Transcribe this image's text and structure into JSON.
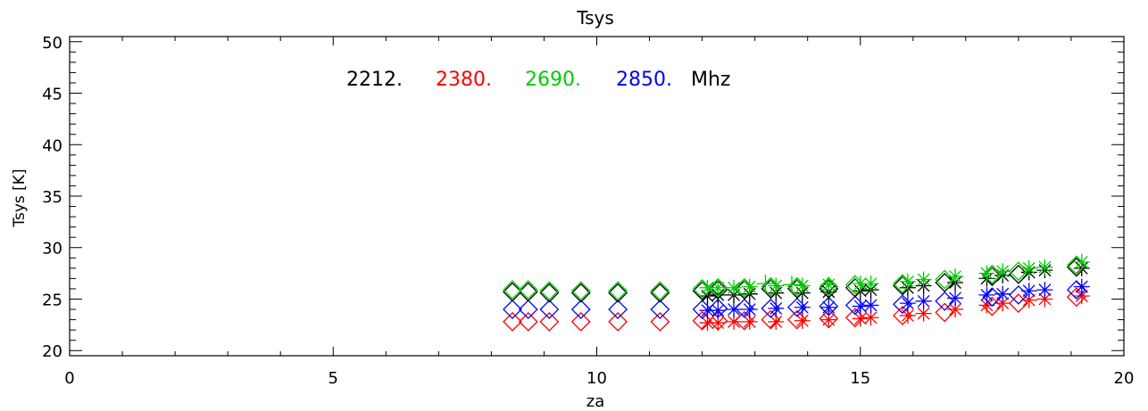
{
  "chart_data": {
    "type": "scatter",
    "title": "Tsys",
    "xlabel": "za",
    "ylabel": "Tsys [K]",
    "xlim": [
      0,
      20
    ],
    "ylim": [
      19.5,
      50.5
    ],
    "x_ticks": [
      "0",
      "5",
      "10",
      "15",
      "20"
    ],
    "y_ticks": [
      "20",
      "25",
      "30",
      "35",
      "40",
      "45",
      "50"
    ],
    "grid": false,
    "legend": {
      "placement": "top-left",
      "entries": [
        {
          "label": "2212.",
          "color": "#000000"
        },
        {
          "label": "2380.",
          "color": "#ff0000"
        },
        {
          "label": "2690.",
          "color": "#00cc00"
        },
        {
          "label": "2850.",
          "color": "#0000ff"
        }
      ],
      "unit": "Mhz"
    },
    "series": [
      {
        "name": "2212.",
        "color": "#000000",
        "diamonds": [
          [
            8.4,
            25.7
          ],
          [
            8.7,
            25.7
          ],
          [
            9.1,
            25.6
          ],
          [
            9.7,
            25.6
          ],
          [
            10.4,
            25.6
          ],
          [
            11.2,
            25.6
          ],
          [
            12.0,
            25.8
          ],
          [
            12.3,
            25.9
          ],
          [
            12.8,
            25.9
          ],
          [
            13.3,
            26.0
          ],
          [
            13.8,
            26.0
          ],
          [
            14.4,
            26.0
          ],
          [
            14.9,
            26.1
          ],
          [
            15.8,
            26.3
          ],
          [
            16.6,
            26.6
          ],
          [
            17.5,
            27.2
          ],
          [
            18.0,
            27.4
          ],
          [
            19.1,
            28.1
          ]
        ],
        "stars": [
          [
            12.1,
            25.3
          ],
          [
            12.3,
            25.4
          ],
          [
            12.6,
            25.4
          ],
          [
            12.9,
            25.5
          ],
          [
            13.4,
            25.6
          ],
          [
            13.9,
            25.6
          ],
          [
            14.4,
            25.7
          ],
          [
            15.0,
            25.8
          ],
          [
            15.2,
            25.9
          ],
          [
            15.9,
            26.1
          ],
          [
            16.2,
            26.3
          ],
          [
            16.8,
            26.6
          ],
          [
            17.4,
            27.0
          ],
          [
            17.7,
            27.3
          ],
          [
            18.2,
            27.6
          ],
          [
            18.5,
            27.8
          ],
          [
            19.2,
            28.0
          ]
        ]
      },
      {
        "name": "2380.",
        "color": "#ff0000",
        "diamonds": [
          [
            8.4,
            22.8
          ],
          [
            8.7,
            22.8
          ],
          [
            9.1,
            22.8
          ],
          [
            9.7,
            22.8
          ],
          [
            10.4,
            22.8
          ],
          [
            11.2,
            22.8
          ],
          [
            12.0,
            22.9
          ],
          [
            12.3,
            22.9
          ],
          [
            12.8,
            22.9
          ],
          [
            13.3,
            23.0
          ],
          [
            13.8,
            23.0
          ],
          [
            14.4,
            23.1
          ],
          [
            14.9,
            23.2
          ],
          [
            15.8,
            23.4
          ],
          [
            16.6,
            23.7
          ],
          [
            17.5,
            24.3
          ],
          [
            18.0,
            24.6
          ],
          [
            19.1,
            25.2
          ]
        ],
        "stars": [
          [
            12.1,
            22.7
          ],
          [
            12.3,
            22.7
          ],
          [
            12.6,
            22.8
          ],
          [
            12.9,
            22.8
          ],
          [
            13.4,
            22.8
          ],
          [
            13.9,
            22.9
          ],
          [
            14.4,
            23.0
          ],
          [
            15.0,
            23.1
          ],
          [
            15.2,
            23.2
          ],
          [
            15.9,
            23.4
          ],
          [
            16.2,
            23.6
          ],
          [
            16.8,
            24.0
          ],
          [
            17.4,
            24.4
          ],
          [
            17.7,
            24.6
          ],
          [
            18.2,
            24.9
          ],
          [
            18.5,
            25.0
          ],
          [
            19.2,
            25.3
          ]
        ]
      },
      {
        "name": "2690.",
        "color": "#00cc00",
        "diamonds": [
          [
            8.4,
            25.9
          ],
          [
            8.7,
            25.9
          ],
          [
            9.1,
            25.8
          ],
          [
            9.7,
            25.8
          ],
          [
            10.4,
            25.8
          ],
          [
            11.2,
            25.8
          ],
          [
            12.0,
            26.0
          ],
          [
            12.3,
            26.1
          ],
          [
            12.8,
            26.1
          ],
          [
            13.3,
            26.2
          ],
          [
            13.8,
            26.2
          ],
          [
            14.4,
            26.2
          ],
          [
            14.9,
            26.4
          ],
          [
            15.8,
            26.5
          ],
          [
            16.6,
            26.9
          ],
          [
            17.5,
            27.4
          ],
          [
            18.0,
            27.7
          ],
          [
            19.1,
            28.3
          ]
        ],
        "stars": [
          [
            12.1,
            26.1
          ],
          [
            12.3,
            26.1
          ],
          [
            12.6,
            26.1
          ],
          [
            12.9,
            26.2
          ],
          [
            13.4,
            26.3
          ],
          [
            13.9,
            26.3
          ],
          [
            14.4,
            26.4
          ],
          [
            15.0,
            26.5
          ],
          [
            15.2,
            26.5
          ],
          [
            15.9,
            26.7
          ],
          [
            16.2,
            26.9
          ],
          [
            16.8,
            27.2
          ],
          [
            17.4,
            27.5
          ],
          [
            17.7,
            27.7
          ],
          [
            18.2,
            28.0
          ],
          [
            18.5,
            28.1
          ],
          [
            19.2,
            28.6
          ]
        ],
        "plus": [
          [
            13.2,
            26.5
          ],
          [
            13.7,
            26.4
          ]
        ]
      },
      {
        "name": "2850.",
        "color": "#0000ff",
        "diamonds": [
          [
            8.4,
            24.0
          ],
          [
            8.7,
            24.0
          ],
          [
            9.1,
            24.0
          ],
          [
            9.7,
            24.0
          ],
          [
            10.4,
            24.0
          ],
          [
            11.2,
            24.0
          ],
          [
            12.0,
            24.0
          ],
          [
            12.3,
            24.1
          ],
          [
            12.8,
            24.1
          ],
          [
            13.3,
            24.1
          ],
          [
            13.8,
            24.2
          ],
          [
            14.4,
            24.3
          ],
          [
            14.9,
            24.4
          ],
          [
            15.8,
            24.5
          ],
          [
            16.6,
            24.8
          ],
          [
            17.5,
            25.2
          ],
          [
            18.0,
            25.4
          ],
          [
            19.1,
            25.9
          ]
        ],
        "stars": [
          [
            12.1,
            23.9
          ],
          [
            12.3,
            23.9
          ],
          [
            12.6,
            24.0
          ],
          [
            12.9,
            24.0
          ],
          [
            13.4,
            24.1
          ],
          [
            13.9,
            24.2
          ],
          [
            14.4,
            24.2
          ],
          [
            15.0,
            24.3
          ],
          [
            15.2,
            24.4
          ],
          [
            15.9,
            24.6
          ],
          [
            16.2,
            24.8
          ],
          [
            16.8,
            25.1
          ],
          [
            17.4,
            25.4
          ],
          [
            17.7,
            25.5
          ],
          [
            18.2,
            25.8
          ],
          [
            18.5,
            25.9
          ],
          [
            19.2,
            26.2
          ]
        ]
      }
    ]
  }
}
